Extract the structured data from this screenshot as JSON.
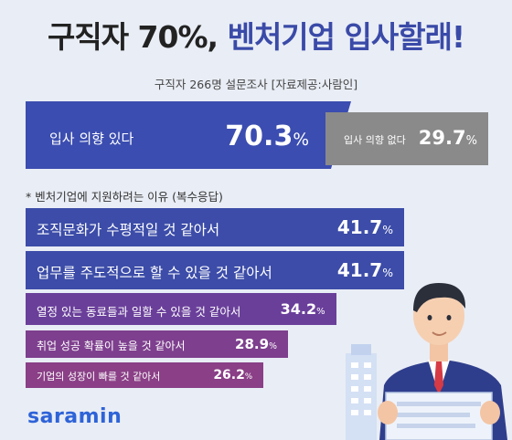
{
  "title": {
    "part1": "구직자 70%,",
    "part2": "벤처기업 입사할래!"
  },
  "subtitle": "구직자 266명 설문조사 [자료제공:사람인]",
  "chart_data": [
    {
      "type": "bar",
      "orientation": "horizontal-stacked",
      "categories": [
        "입사 의향 있다",
        "입사 의향 없다"
      ],
      "values": [
        70.3,
        29.7
      ],
      "unit": "%",
      "colors": [
        "#3b4db0",
        "#8a8a8a"
      ]
    },
    {
      "type": "bar",
      "orientation": "horizontal",
      "note": "* 벤처기업에 지원하려는 이유 (복수응답)",
      "categories": [
        "조직문화가 수평적일 것 같아서",
        "업무를 주도적으로 할 수 있을 것 같아서",
        "열정 있는 동료들과 일할 수 있을 것 같아서",
        "취업 성공 확률이 높을 것 같아서",
        "기업의 성장이 빠를 것 같아서"
      ],
      "values": [
        41.7,
        41.7,
        34.2,
        28.9,
        26.2
      ],
      "unit": "%",
      "colors": [
        "#3c4ca8",
        "#3c4ca8",
        "#6a3f9a",
        "#7e3f8e",
        "#8a3f86"
      ]
    }
  ],
  "brand": {
    "logo_text": "saramin",
    "logo_color": "#2e63d8"
  },
  "icons": [
    "businessman-illustration",
    "building-illustration",
    "document-illustration"
  ]
}
